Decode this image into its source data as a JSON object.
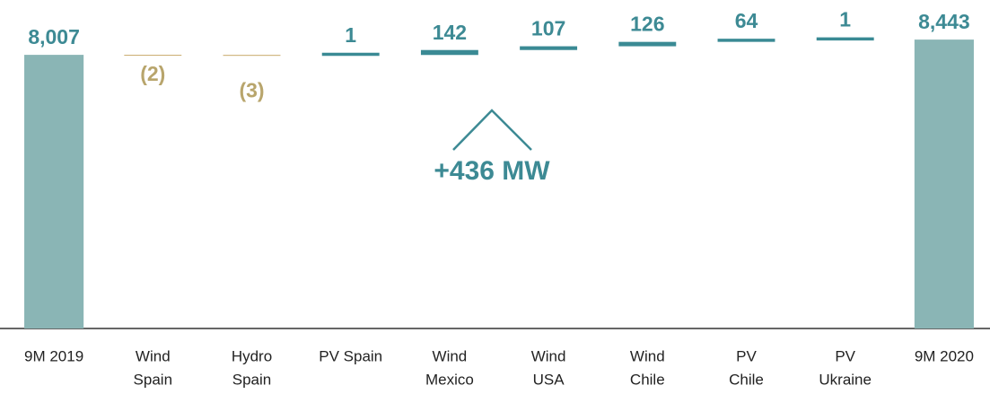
{
  "chart_data": {
    "type": "waterfall",
    "categories": [
      [
        "9M 2019"
      ],
      [
        "Wind",
        "Spain"
      ],
      [
        "Hydro",
        "Spain"
      ],
      [
        "PV Spain"
      ],
      [
        "Wind",
        "Mexico"
      ],
      [
        "Wind",
        "USA"
      ],
      [
        "Wind",
        "Chile"
      ],
      [
        "PV",
        "Chile"
      ],
      [
        "PV",
        "Ukraine"
      ],
      [
        "9M 2020"
      ]
    ],
    "values": [
      8007,
      -2,
      -3,
      1,
      142,
      107,
      126,
      64,
      1,
      8443
    ],
    "value_labels": [
      "8,007",
      "(2)",
      "(3)",
      "1",
      "142",
      "107",
      "126",
      "64",
      "1",
      "8,443"
    ],
    "colors": {
      "total": "#8ab5b5",
      "increase": "#3a8a94",
      "decrease": "#c8a96a",
      "total_label": "#3d8a94",
      "increase_label": "#3d8a94",
      "decrease_label": "#b8a56c"
    },
    "ylim": [
      180,
      8600
    ],
    "annotation": "+436 MW"
  }
}
